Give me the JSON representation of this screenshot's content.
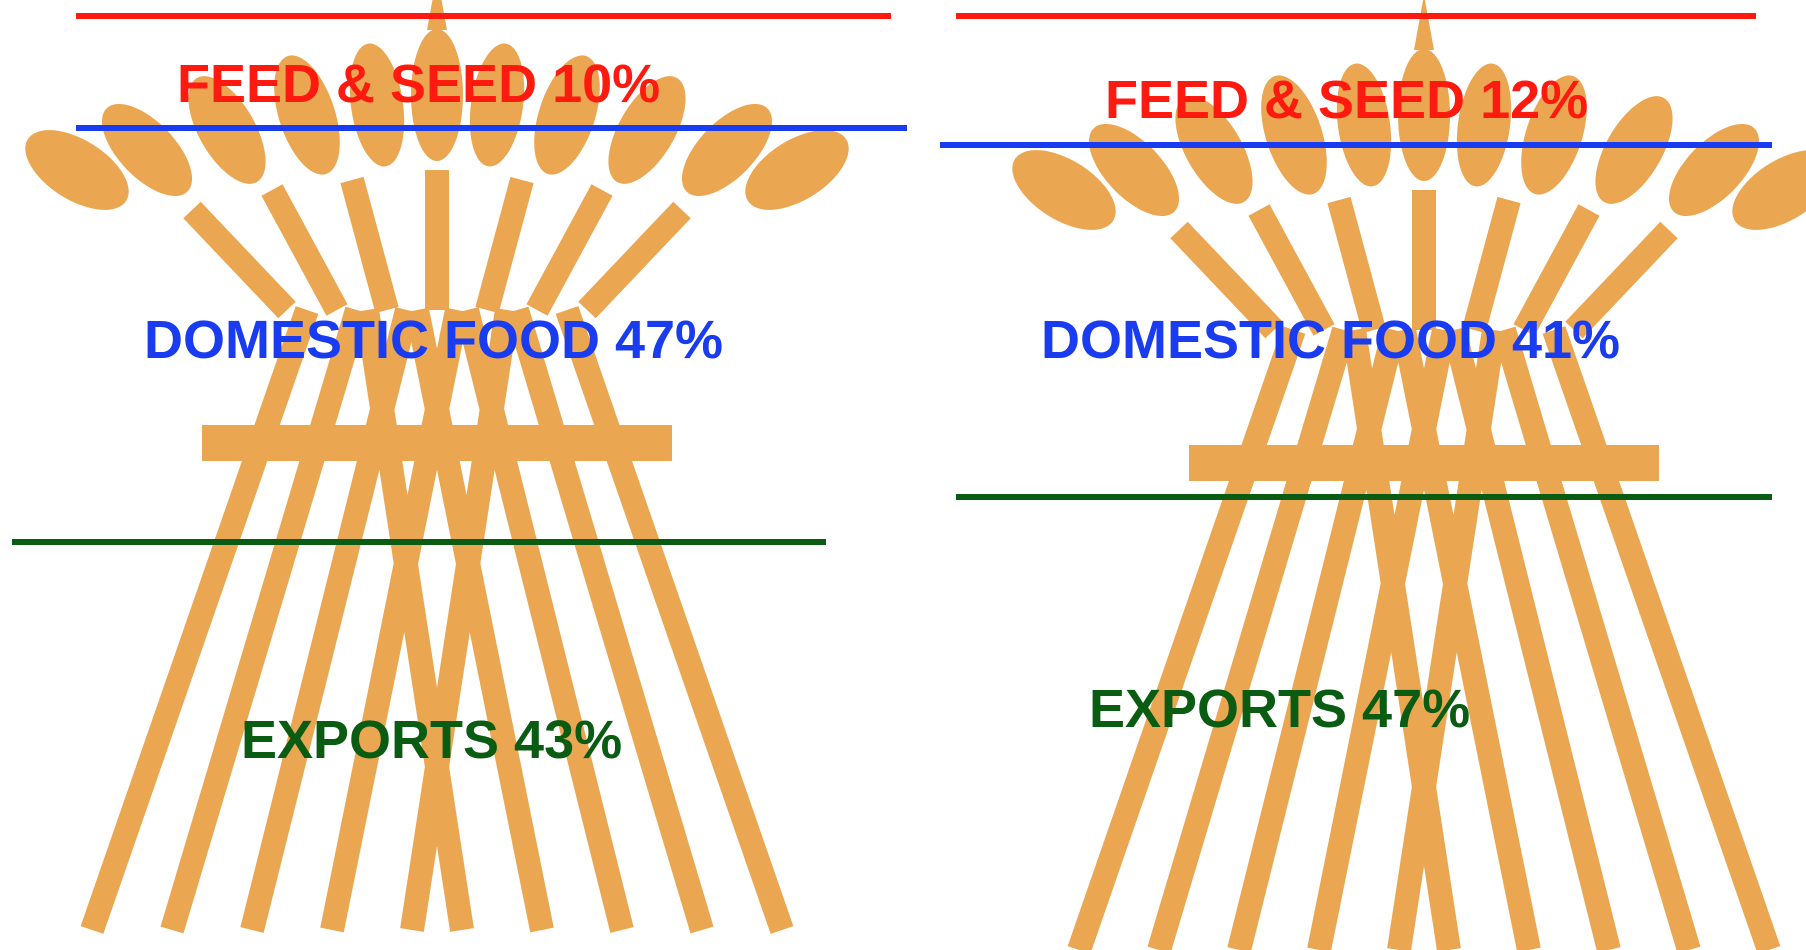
{
  "colors": {
    "wheat": "#EBA651",
    "feed_seed": "#FF1A10",
    "domestic_food": "#1A3CF0",
    "exports": "#0A5C12",
    "background": "#FFFFFF"
  },
  "chart_data": [
    {
      "type": "pictorial-stacked",
      "icon": "wheat-sheaf-icon",
      "segments": [
        {
          "key": "feed_seed",
          "label": "FEED & SEED 10%",
          "value": 10
        },
        {
          "key": "domestic_food",
          "label": "DOMESTIC FOOD 47%",
          "value": 47
        },
        {
          "key": "exports",
          "label": "EXPORTS 43%",
          "value": 43
        }
      ]
    },
    {
      "type": "pictorial-stacked",
      "icon": "wheat-sheaf-icon",
      "segments": [
        {
          "key": "feed_seed",
          "label": "FEED & SEED 12%",
          "value": 12
        },
        {
          "key": "domestic_food",
          "label": "DOMESTIC FOOD 41%",
          "value": 41
        },
        {
          "key": "exports",
          "label": "EXPORTS 47%",
          "value": 47
        }
      ]
    }
  ]
}
